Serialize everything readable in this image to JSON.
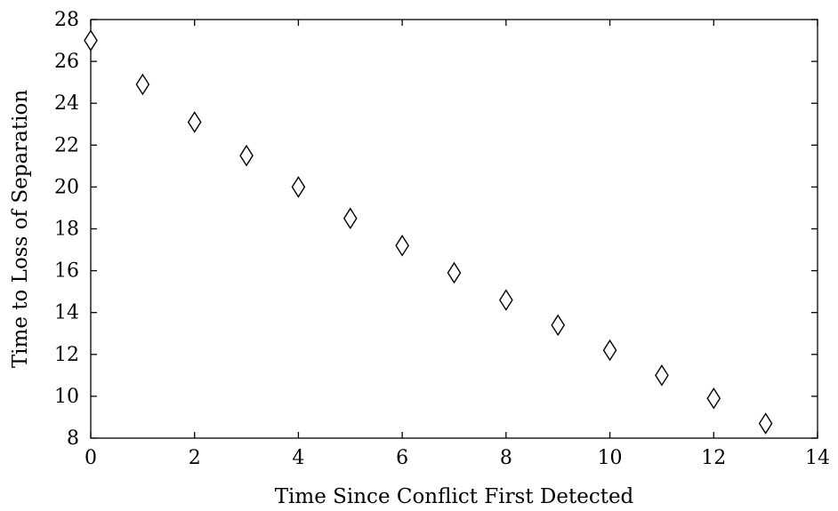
{
  "chart_data": {
    "type": "scatter",
    "title": "",
    "xlabel": "Time Since Conflict First Detected",
    "ylabel": "Time to Loss of Separation",
    "xlim": [
      0,
      14
    ],
    "ylim": [
      8,
      28
    ],
    "xticks": [
      0,
      2,
      4,
      6,
      8,
      10,
      12,
      14
    ],
    "yticks": [
      8,
      10,
      12,
      14,
      16,
      18,
      20,
      22,
      24,
      26,
      28
    ],
    "grid": false,
    "marker": "diamond (hollow)",
    "series": [
      {
        "x": [
          0,
          1,
          2,
          3,
          4,
          5,
          6,
          7,
          8,
          9,
          10,
          11,
          12,
          13
        ],
        "y": [
          27.0,
          24.9,
          23.1,
          21.5,
          20.0,
          18.5,
          17.2,
          15.9,
          14.6,
          13.4,
          12.2,
          11.0,
          9.9,
          8.7
        ]
      }
    ]
  }
}
